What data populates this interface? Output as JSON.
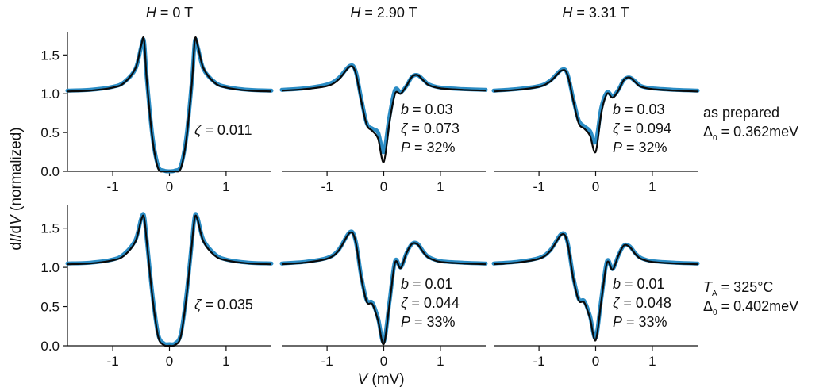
{
  "figure": {
    "ylabel": "dI/dV (normalized)",
    "xlabel": "V (mV)",
    "columns": [
      {
        "label": "H = 0 T",
        "var": "H",
        "value": " = 0 T"
      },
      {
        "label": "H = 2.90 T",
        "var": "H",
        "value": " = 2.90 T"
      },
      {
        "label": "H = 3.31 T",
        "var": "H",
        "value": " = 3.31 T"
      }
    ],
    "rows": [
      {
        "line1": "as prepared",
        "line2": "Δ0 = 0.362meV"
      },
      {
        "line1": "TA = 325°C",
        "line2": "Δ0 = 0.402meV"
      }
    ],
    "colors": {
      "data": "#2b8cc4",
      "fit": "#0a0a0a"
    }
  },
  "chart_data": [
    {
      "type": "line",
      "row": 0,
      "col": 0,
      "annotations": [
        "ζ = 0.011"
      ],
      "xlim": [
        -1.8,
        1.8
      ],
      "ylim": [
        0,
        1.8
      ],
      "xticks": [
        -1,
        0,
        1
      ],
      "yticks": [
        0.0,
        0.5,
        1.0,
        1.5
      ],
      "x": [
        -1.8,
        -1.4,
        -1.0,
        -0.8,
        -0.6,
        -0.5,
        -0.45,
        -0.4,
        -0.3,
        -0.2,
        -0.1,
        0.0,
        0.1,
        0.2,
        0.3,
        0.4,
        0.45,
        0.5,
        0.6,
        0.8,
        1.0,
        1.4,
        1.8
      ],
      "series": [
        {
          "name": "measured",
          "values": [
            1.04,
            1.05,
            1.09,
            1.15,
            1.32,
            1.6,
            1.68,
            1.2,
            0.45,
            0.07,
            0.01,
            0.0,
            0.01,
            0.07,
            0.45,
            1.2,
            1.68,
            1.6,
            1.32,
            1.15,
            1.09,
            1.05,
            1.04
          ]
        },
        {
          "name": "fit",
          "values": [
            1.03,
            1.04,
            1.08,
            1.14,
            1.33,
            1.62,
            1.7,
            1.18,
            0.42,
            0.04,
            0.0,
            0.0,
            0.0,
            0.04,
            0.42,
            1.18,
            1.7,
            1.62,
            1.33,
            1.14,
            1.08,
            1.04,
            1.03
          ]
        }
      ]
    },
    {
      "type": "line",
      "row": 0,
      "col": 1,
      "annotations": [
        "b = 0.03",
        "ζ = 0.073",
        "P = 32%"
      ],
      "xlim": [
        -1.8,
        1.8
      ],
      "ylim": [
        0,
        1.8
      ],
      "xticks": [
        -1,
        0,
        1
      ],
      "yticks": [
        0.0,
        0.5,
        1.0,
        1.5
      ],
      "x": [
        -1.8,
        -1.4,
        -1.0,
        -0.8,
        -0.6,
        -0.5,
        -0.4,
        -0.3,
        -0.2,
        -0.1,
        0.0,
        0.1,
        0.2,
        0.3,
        0.4,
        0.5,
        0.6,
        0.7,
        0.8,
        1.0,
        1.4,
        1.8
      ],
      "series": [
        {
          "name": "measured",
          "values": [
            1.05,
            1.07,
            1.12,
            1.2,
            1.36,
            1.3,
            0.95,
            0.62,
            0.55,
            0.5,
            0.25,
            0.7,
            1.05,
            1.02,
            1.1,
            1.22,
            1.24,
            1.18,
            1.12,
            1.08,
            1.06,
            1.05
          ]
        },
        {
          "name": "fit",
          "values": [
            1.04,
            1.06,
            1.1,
            1.18,
            1.35,
            1.28,
            0.92,
            0.6,
            0.52,
            0.42,
            0.12,
            0.62,
            1.0,
            1.0,
            1.1,
            1.22,
            1.24,
            1.17,
            1.11,
            1.07,
            1.05,
            1.04
          ]
        }
      ]
    },
    {
      "type": "line",
      "row": 0,
      "col": 2,
      "annotations": [
        "b = 0.03",
        "ζ = 0.094",
        "P = 32%"
      ],
      "xlim": [
        -1.8,
        1.8
      ],
      "ylim": [
        0,
        1.8
      ],
      "xticks": [
        -1,
        0,
        1
      ],
      "yticks": [
        0.0,
        0.5,
        1.0,
        1.5
      ],
      "x": [
        -1.8,
        -1.4,
        -1.0,
        -0.8,
        -0.6,
        -0.5,
        -0.4,
        -0.3,
        -0.2,
        -0.1,
        0.0,
        0.1,
        0.2,
        0.3,
        0.4,
        0.5,
        0.6,
        0.7,
        0.8,
        1.0,
        1.4,
        1.8
      ],
      "series": [
        {
          "name": "measured",
          "values": [
            1.04,
            1.06,
            1.1,
            1.17,
            1.31,
            1.26,
            0.95,
            0.66,
            0.58,
            0.52,
            0.38,
            0.82,
            1.02,
            0.97,
            1.05,
            1.18,
            1.21,
            1.16,
            1.1,
            1.07,
            1.05,
            1.04
          ]
        },
        {
          "name": "fit",
          "values": [
            1.03,
            1.05,
            1.09,
            1.16,
            1.3,
            1.25,
            0.93,
            0.62,
            0.55,
            0.46,
            0.25,
            0.75,
            1.0,
            0.95,
            1.04,
            1.18,
            1.21,
            1.15,
            1.09,
            1.06,
            1.04,
            1.03
          ]
        }
      ]
    },
    {
      "type": "line",
      "row": 1,
      "col": 0,
      "annotations": [
        "ζ = 0.035"
      ],
      "xlim": [
        -1.8,
        1.8
      ],
      "ylim": [
        0,
        1.8
      ],
      "xticks": [
        -1,
        0,
        1
      ],
      "yticks": [
        0.0,
        0.5,
        1.0,
        1.5
      ],
      "x": [
        -1.8,
        -1.4,
        -1.0,
        -0.8,
        -0.6,
        -0.5,
        -0.45,
        -0.4,
        -0.3,
        -0.2,
        -0.1,
        0.0,
        0.1,
        0.2,
        0.3,
        0.4,
        0.45,
        0.5,
        0.6,
        0.8,
        1.0,
        1.4,
        1.8
      ],
      "series": [
        {
          "name": "measured",
          "values": [
            1.05,
            1.06,
            1.1,
            1.17,
            1.35,
            1.62,
            1.66,
            1.35,
            0.65,
            0.15,
            0.03,
            0.02,
            0.03,
            0.15,
            0.65,
            1.35,
            1.66,
            1.62,
            1.35,
            1.17,
            1.1,
            1.06,
            1.05
          ]
        },
        {
          "name": "fit",
          "values": [
            1.04,
            1.05,
            1.09,
            1.15,
            1.33,
            1.6,
            1.64,
            1.33,
            0.62,
            0.12,
            0.01,
            0.0,
            0.01,
            0.12,
            0.62,
            1.33,
            1.64,
            1.6,
            1.33,
            1.15,
            1.09,
            1.05,
            1.04
          ]
        }
      ]
    },
    {
      "type": "line",
      "row": 1,
      "col": 1,
      "annotations": [
        "b = 0.01",
        "ζ = 0.044",
        "P = 33%"
      ],
      "xlim": [
        -1.8,
        1.8
      ],
      "ylim": [
        0,
        1.8
      ],
      "xticks": [
        -1,
        0,
        1
      ],
      "yticks": [
        0.0,
        0.5,
        1.0,
        1.5
      ],
      "x": [
        -1.8,
        -1.4,
        -1.0,
        -0.8,
        -0.6,
        -0.5,
        -0.4,
        -0.3,
        -0.2,
        -0.1,
        0.0,
        0.1,
        0.2,
        0.3,
        0.4,
        0.5,
        0.6,
        0.7,
        0.8,
        1.0,
        1.4,
        1.8
      ],
      "series": [
        {
          "name": "measured",
          "values": [
            1.05,
            1.07,
            1.12,
            1.22,
            1.45,
            1.35,
            0.9,
            0.58,
            0.55,
            0.35,
            0.05,
            0.55,
            1.08,
            1.0,
            1.18,
            1.3,
            1.3,
            1.2,
            1.13,
            1.08,
            1.06,
            1.05
          ]
        },
        {
          "name": "fit",
          "values": [
            1.04,
            1.06,
            1.11,
            1.21,
            1.44,
            1.34,
            0.88,
            0.56,
            0.53,
            0.32,
            0.02,
            0.52,
            1.06,
            0.99,
            1.18,
            1.3,
            1.29,
            1.19,
            1.12,
            1.07,
            1.05,
            1.04
          ]
        }
      ]
    },
    {
      "type": "line",
      "row": 1,
      "col": 2,
      "annotations": [
        "b = 0.01",
        "ζ = 0.048",
        "P = 33%"
      ],
      "xlim": [
        -1.8,
        1.8
      ],
      "ylim": [
        0,
        1.8
      ],
      "xticks": [
        -1,
        0,
        1
      ],
      "yticks": [
        0.0,
        0.5,
        1.0,
        1.5
      ],
      "x": [
        -1.8,
        -1.4,
        -1.0,
        -0.8,
        -0.6,
        -0.5,
        -0.4,
        -0.3,
        -0.2,
        -0.1,
        0.0,
        0.1,
        0.2,
        0.3,
        0.4,
        0.5,
        0.6,
        0.7,
        0.8,
        1.0,
        1.4,
        1.8
      ],
      "series": [
        {
          "name": "measured",
          "values": [
            1.05,
            1.07,
            1.12,
            1.22,
            1.43,
            1.33,
            0.9,
            0.6,
            0.57,
            0.38,
            0.1,
            0.6,
            1.08,
            0.98,
            1.15,
            1.28,
            1.27,
            1.18,
            1.12,
            1.08,
            1.06,
            1.05
          ]
        },
        {
          "name": "fit",
          "values": [
            1.04,
            1.06,
            1.11,
            1.21,
            1.42,
            1.32,
            0.88,
            0.58,
            0.55,
            0.35,
            0.07,
            0.57,
            1.06,
            0.97,
            1.15,
            1.28,
            1.26,
            1.17,
            1.11,
            1.07,
            1.05,
            1.04
          ]
        }
      ]
    }
  ]
}
